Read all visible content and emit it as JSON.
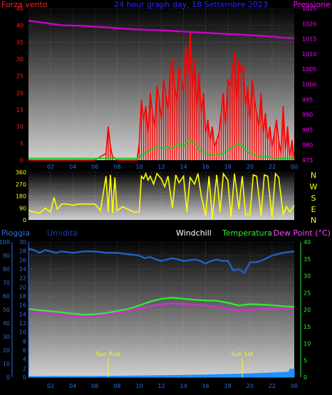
{
  "header": {
    "left": "Forza vento",
    "center": "24 hour graph day, 18 Settembre 2023",
    "right": "Pressione"
  },
  "colors": {
    "wind": "#ff0000",
    "wind_avg": "#22cc22",
    "pressure": "#cc00cc",
    "direction": "#ffff00",
    "humidity": "#1f5fbf",
    "temperature": "#33ee33",
    "dewpoint": "#cc33cc",
    "rain": "#1e90ff",
    "axis_text_left": "#ff2020",
    "axis_text_right": "#ff00ff",
    "bottom_axis_text": "#2a6fdf"
  },
  "chart_data": [
    {
      "type": "line",
      "panel": "wind_pressure",
      "x_labels": [
        "02",
        "04",
        "06",
        "08",
        "10",
        "12",
        "14",
        "16",
        "18",
        "20",
        "22",
        "00"
      ],
      "x_range_hours": [
        0,
        24
      ],
      "left_axis": {
        "ylim": [
          0,
          45
        ],
        "ticks": [
          "0",
          "5",
          "10",
          "15",
          "20",
          "25",
          "30",
          "35",
          "40",
          "45"
        ]
      },
      "right_axis": {
        "ylim": [
          975,
          1025
        ],
        "ticks": [
          "975",
          "980",
          "985",
          "990",
          "995",
          "1000",
          "1005",
          "1010",
          "1015",
          "1020",
          "1025"
        ]
      },
      "series": [
        {
          "name": "Pressione",
          "axis": "right",
          "x": [
            0,
            1,
            2,
            3,
            4,
            5,
            6,
            7,
            8,
            9,
            10,
            11,
            12,
            13,
            14,
            15,
            16,
            17,
            18,
            19,
            20,
            21,
            22,
            23,
            24
          ],
          "values": [
            1021,
            1020.5,
            1020,
            1019.5,
            1019.4,
            1019.3,
            1019,
            1018.8,
            1018.5,
            1018.3,
            1018.1,
            1017.9,
            1017.8,
            1017.6,
            1017.4,
            1017.2,
            1017,
            1016.8,
            1016.6,
            1016.4,
            1016.2,
            1016,
            1015.7,
            1015.4,
            1015.2
          ]
        },
        {
          "name": "Forza vento",
          "axis": "left",
          "x": [
            0,
            3,
            6,
            7.0,
            7.2,
            7.4,
            7.6,
            8,
            9,
            9.8,
            10.0,
            10.2,
            10.4,
            10.6,
            10.8,
            11.0,
            11.2,
            11.4,
            11.6,
            11.8,
            12.0,
            12.2,
            12.4,
            12.6,
            12.8,
            13.0,
            13.2,
            13.4,
            13.6,
            13.8,
            14.0,
            14.2,
            14.4,
            14.6,
            14.8,
            15.0,
            15.2,
            15.4,
            15.6,
            15.8,
            16.0,
            16.2,
            16.4,
            16.6,
            16.8,
            17.0,
            17.2,
            17.4,
            17.6,
            17.8,
            18.0,
            18.2,
            18.4,
            18.6,
            18.8,
            19.0,
            19.2,
            19.4,
            19.6,
            19.8,
            20.0,
            20.2,
            20.4,
            20.6,
            20.8,
            21.0,
            21.2,
            21.4,
            21.6,
            21.8,
            22.0,
            22.2,
            22.4,
            22.6,
            22.8,
            23.0,
            23.2,
            23.4,
            23.6,
            23.8,
            24
          ],
          "values": [
            0,
            0,
            0,
            2,
            10,
            4,
            1,
            0,
            0,
            0,
            5,
            18,
            12,
            16,
            8,
            20,
            14,
            10,
            22,
            18,
            12,
            24,
            20,
            15,
            26,
            30,
            22,
            18,
            28,
            24,
            20,
            34,
            25,
            38,
            22,
            30,
            16,
            26,
            14,
            20,
            8,
            12,
            6,
            10,
            4,
            6,
            8,
            14,
            20,
            10,
            24,
            22,
            26,
            32,
            18,
            30,
            26,
            28,
            16,
            22,
            12,
            24,
            18,
            14,
            10,
            20,
            8,
            14,
            6,
            10,
            4,
            8,
            12,
            6,
            2,
            16,
            3,
            10,
            1,
            6,
            0
          ]
        },
        {
          "name": "wind_avg",
          "axis": "left",
          "x": [
            0,
            9.8,
            10.5,
            11,
            11.5,
            12,
            12.5,
            13,
            13.5,
            14,
            14.5,
            15,
            15.5,
            16,
            16.5,
            17,
            17.5,
            18,
            18.5,
            19,
            19.5,
            20,
            20.5,
            21,
            21.5,
            22,
            22.5,
            23,
            23.5,
            24
          ],
          "values": [
            0.5,
            0.5,
            2,
            3,
            4,
            3.5,
            4,
            3.5,
            5,
            4,
            6,
            5,
            3,
            2,
            1.5,
            1.5,
            2,
            3,
            4,
            5,
            3.5,
            2,
            1.5,
            1,
            1,
            0.8,
            0.5,
            0.5,
            0.5,
            0.5
          ]
        }
      ]
    },
    {
      "type": "line",
      "panel": "wind_direction",
      "x_range_hours": [
        0,
        24
      ],
      "left_axis": {
        "ylim": [
          0,
          360
        ],
        "ticks": [
          "0",
          "90",
          "180",
          "270",
          "360"
        ]
      },
      "right_axis_labels": [
        "N",
        "W",
        "S",
        "E",
        "N"
      ],
      "series": [
        {
          "name": "direction",
          "x": [
            0,
            0.5,
            1.0,
            1.5,
            2.0,
            2.3,
            2.6,
            3.0,
            3.5,
            4.0,
            4.5,
            5.0,
            5.5,
            6.0,
            6.5,
            7.0,
            7.2,
            7.4,
            7.6,
            7.8,
            8.0,
            8.5,
            9.0,
            9.5,
            10.0,
            10.2,
            10.4,
            10.6,
            10.8,
            11.0,
            11.3,
            11.6,
            12.0,
            12.3,
            12.6,
            13.0,
            13.3,
            13.6,
            14.0,
            14.3,
            14.6,
            15.0,
            15.3,
            15.6,
            16.0,
            16.3,
            16.6,
            17.0,
            17.3,
            17.6,
            18.0,
            18.3,
            18.6,
            19.0,
            19.3,
            19.6,
            20.0,
            20.3,
            20.6,
            21.0,
            21.3,
            21.6,
            22.0,
            22.3,
            22.6,
            23.0,
            23.3,
            23.6,
            24.0
          ],
          "values": [
            70,
            60,
            50,
            90,
            60,
            170,
            80,
            120,
            120,
            110,
            120,
            120,
            120,
            120,
            70,
            330,
            60,
            340,
            50,
            320,
            70,
            100,
            80,
            60,
            60,
            330,
            310,
            350,
            300,
            330,
            270,
            350,
            310,
            250,
            330,
            90,
            340,
            280,
            330,
            60,
            320,
            270,
            350,
            180,
            30,
            330,
            10,
            340,
            60,
            350,
            300,
            20,
            350,
            80,
            330,
            40,
            40,
            340,
            330,
            30,
            340,
            330,
            20,
            350,
            320,
            40,
            100,
            60,
            110
          ]
        }
      ]
    },
    {
      "type": "line",
      "panel": "temperature_humidity",
      "header_labels": {
        "pioggia": "Pioggia",
        "umidita": "Umidita",
        "windchill": "Windchill",
        "temperatura": "Temperatura",
        "dewpoint": "Dew Point (°C)"
      },
      "x_labels": [
        "02",
        "04",
        "06",
        "08",
        "10",
        "12",
        "14",
        "16",
        "18",
        "20",
        "22",
        "00"
      ],
      "x_range_hours": [
        0,
        24
      ],
      "sun_markers": [
        {
          "label": "Sun Rise",
          "hour": 7.2
        },
        {
          "label": "Sun Set",
          "hour": 19.3
        }
      ],
      "axis_rain": {
        "ylim": [
          0,
          100
        ],
        "ticks": [
          "0",
          "10",
          "20",
          "30",
          "40",
          "50",
          "60",
          "70",
          "80",
          "90",
          "100"
        ]
      },
      "axis_humidity": {
        "ylim": [
          0,
          30
        ],
        "ticks": [
          "0",
          "2",
          "4",
          "6",
          "8",
          "10",
          "12",
          "14",
          "16",
          "18",
          "20",
          "22",
          "24",
          "26",
          "28",
          "30"
        ]
      },
      "axis_temp": {
        "ylim": [
          0,
          40
        ],
        "ticks": [
          "0",
          "5",
          "10",
          "15",
          "20",
          "25",
          "30",
          "35",
          "40"
        ]
      },
      "series": [
        {
          "name": "Umidita",
          "axis": "rain",
          "x": [
            0,
            0.5,
            1,
            1.5,
            2,
            2.5,
            3,
            4,
            5,
            6,
            7,
            8,
            9,
            10,
            10.5,
            11,
            11.5,
            12,
            12.5,
            13,
            14,
            15,
            15.5,
            16,
            16.5,
            17,
            17.5,
            18,
            18.5,
            19,
            19.5,
            20,
            20.5,
            21,
            22,
            23,
            24
          ],
          "values": [
            95,
            94,
            92,
            94,
            93,
            92,
            93,
            92,
            93,
            93,
            92,
            92,
            91,
            90,
            88,
            89,
            87,
            86,
            87,
            88,
            86,
            87,
            86,
            84,
            86,
            87,
            86,
            86,
            79,
            80,
            77,
            85,
            85,
            86,
            90,
            92,
            93
          ]
        },
        {
          "name": "Temperatura",
          "axis": "temp",
          "x": [
            0,
            1,
            2,
            3,
            4,
            5,
            6,
            7,
            8,
            9,
            10,
            11,
            12,
            13,
            14,
            15,
            16,
            17,
            18,
            19,
            20,
            21,
            22,
            23,
            24
          ],
          "values": [
            20.2,
            19.8,
            19.5,
            19.2,
            18.8,
            18.5,
            18.6,
            19.0,
            19.6,
            20.2,
            21.2,
            22.4,
            23.2,
            23.5,
            23.2,
            22.9,
            22.7,
            22.6,
            22.0,
            21.2,
            21.6,
            21.5,
            21.3,
            21.0,
            20.8
          ]
        },
        {
          "name": "Dew Point",
          "axis": "temp",
          "x": [
            0,
            1,
            2,
            3,
            4,
            5,
            6,
            7,
            8,
            9,
            10,
            11,
            12,
            13,
            14,
            15,
            16,
            17,
            18,
            19,
            20,
            21,
            22,
            23,
            24
          ],
          "values": [
            19.4,
            19.2,
            18.9,
            18.4,
            17.8,
            17.8,
            18.0,
            18.5,
            19.0,
            19.5,
            20.3,
            21.0,
            21.6,
            21.8,
            21.7,
            21.4,
            21.2,
            20.8,
            20.2,
            19.6,
            20.0,
            20.3,
            20.3,
            20.3,
            20.3
          ]
        },
        {
          "name": "Pioggia",
          "axis": "rain",
          "type": "area",
          "x": [
            0,
            2,
            4,
            6,
            8,
            10,
            12,
            14,
            16,
            18,
            20,
            22,
            23.5,
            23.6,
            24
          ],
          "values": [
            0.5,
            0.6,
            0.6,
            0.7,
            0.8,
            1.0,
            1.2,
            1.4,
            1.7,
            2.1,
            2.6,
            3.2,
            3.8,
            6,
            6
          ]
        }
      ]
    }
  ]
}
